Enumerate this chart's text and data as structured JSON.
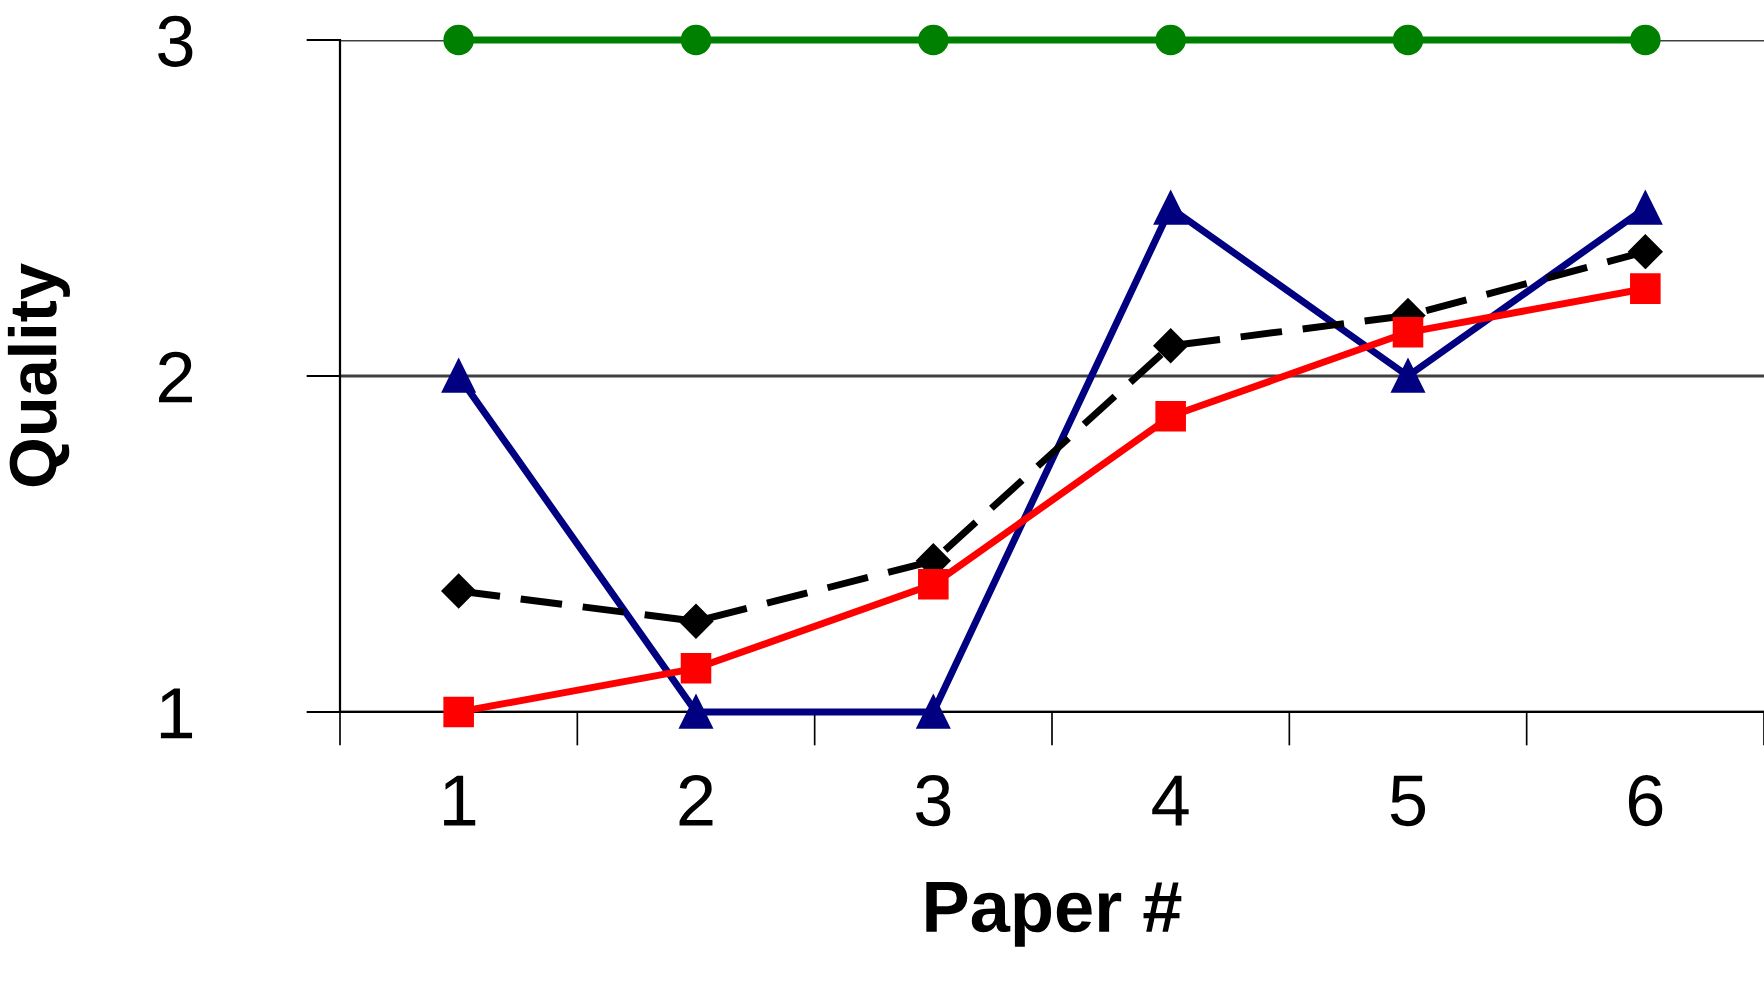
{
  "chart_data": {
    "type": "line",
    "xlabel": "Paper #",
    "ylabel": "Quality",
    "categories": [
      "1",
      "2",
      "3",
      "4",
      "5",
      "6"
    ],
    "series": [
      {
        "color": "#008000",
        "marker": "circle",
        "line_style": "solid",
        "values": [
          3,
          3,
          3,
          3,
          3,
          3
        ]
      },
      {
        "color": "#000080",
        "marker": "triangle",
        "line_style": "solid",
        "values": [
          2,
          1,
          1,
          2.5,
          2,
          2.5
        ]
      },
      {
        "color": "#000000",
        "marker": "diamond",
        "line_style": "dashed",
        "values": [
          1.36,
          1.27,
          1.45,
          2.09,
          2.18,
          2.37
        ]
      },
      {
        "color": "#ff0000",
        "marker": "square",
        "line_style": "solid",
        "values": [
          1.0,
          1.13,
          1.38,
          1.88,
          2.13,
          2.26
        ]
      }
    ],
    "ylim": [
      1,
      3
    ],
    "yticks": [
      1,
      2,
      3
    ],
    "grid": "y",
    "legend": false
  }
}
